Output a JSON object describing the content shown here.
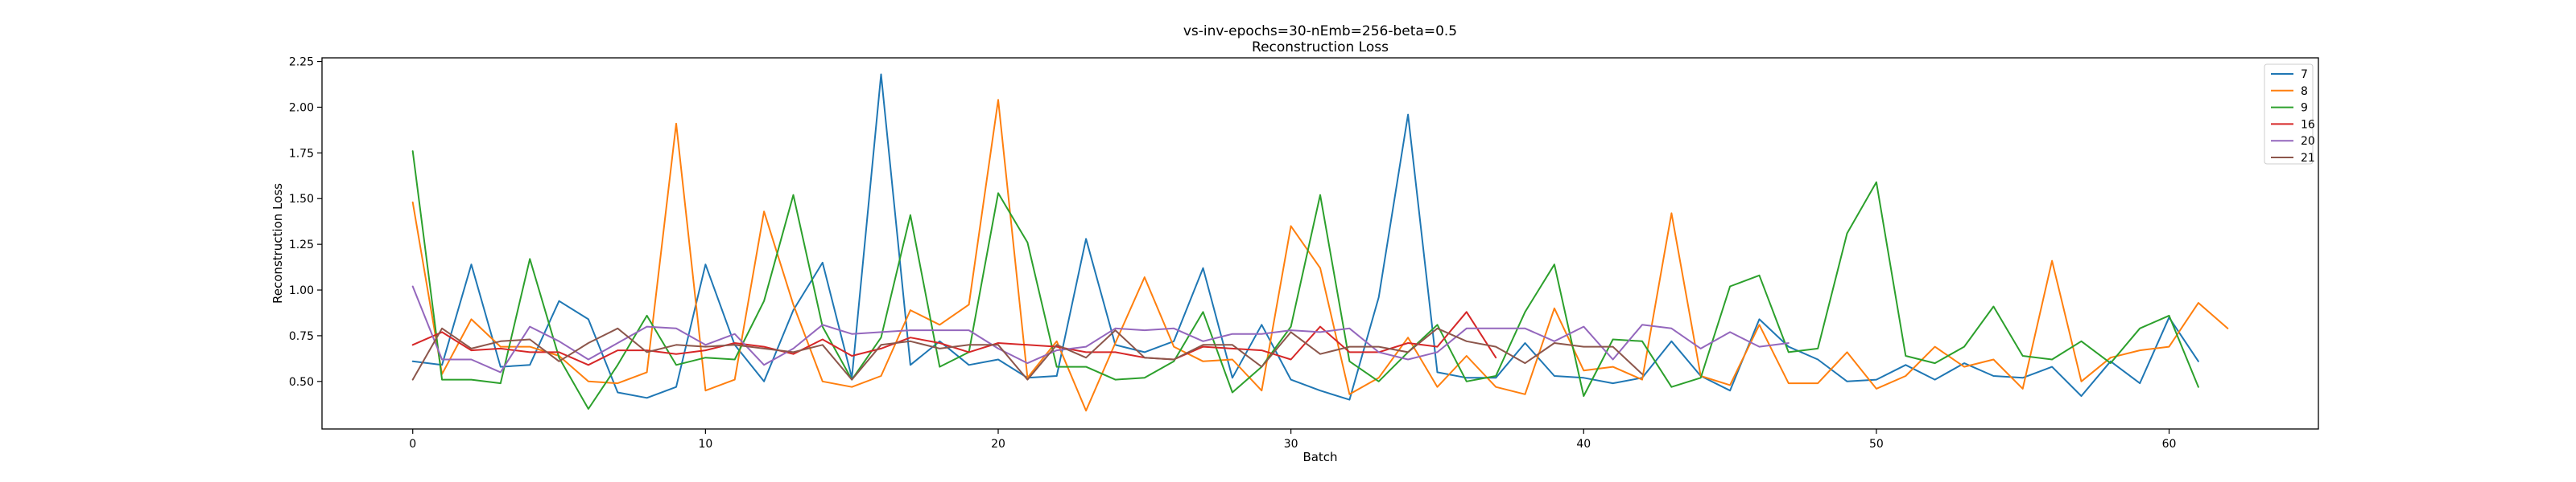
{
  "chart_data": {
    "type": "line",
    "title": "vs-inv-epochs=30-nEmb=256-beta=0.5",
    "subtitle": "Reconstruction Loss",
    "xlabel": "Batch",
    "ylabel": "Reconstruction Loss",
    "xlim": [
      -3.1,
      65.1
    ],
    "ylim": [
      0.24,
      2.27
    ],
    "xticks": [
      0,
      10,
      20,
      30,
      40,
      50,
      60
    ],
    "xtick_labels": [
      "0",
      "10",
      "20",
      "30",
      "40",
      "50",
      "60"
    ],
    "yticks": [
      0.5,
      0.75,
      1.0,
      1.25,
      1.5,
      1.75,
      2.0,
      2.25
    ],
    "ytick_labels": [
      "0.50",
      "0.75",
      "1.00",
      "1.25",
      "1.50",
      "1.75",
      "2.00",
      "2.25"
    ],
    "grid": false,
    "legend_position": "top-right",
    "series": [
      {
        "name": "7",
        "color": "#1f77b4",
        "x_start": 0,
        "x_end": 61,
        "values": [
          0.61,
          0.59,
          1.14,
          0.58,
          0.59,
          0.94,
          0.84,
          0.44,
          0.41,
          0.47,
          1.14,
          0.7,
          0.5,
          0.89,
          1.15,
          0.52,
          2.18,
          0.59,
          0.72,
          0.59,
          0.62,
          0.52,
          0.53,
          1.28,
          0.7,
          0.66,
          0.72,
          1.12,
          0.52,
          0.81,
          0.51,
          0.45,
          0.4,
          0.96,
          1.96,
          0.55,
          0.52,
          0.52,
          0.71,
          0.53,
          0.52,
          0.49,
          0.52,
          0.72,
          0.53,
          0.45,
          0.84,
          0.69,
          0.62,
          0.5,
          0.51,
          0.59,
          0.51,
          0.6,
          0.53,
          0.52,
          0.58,
          0.42,
          0.61,
          0.49,
          0.85,
          0.61
        ]
      },
      {
        "name": "8",
        "color": "#ff7f0e",
        "x_start": 0,
        "x_end": 62,
        "values": [
          1.48,
          0.54,
          0.84,
          0.69,
          0.69,
          0.64,
          0.5,
          0.49,
          0.55,
          1.91,
          0.45,
          0.51,
          1.43,
          0.92,
          0.5,
          0.47,
          0.53,
          0.89,
          0.81,
          0.92,
          2.04,
          0.52,
          0.72,
          0.34,
          0.71,
          1.07,
          0.69,
          0.61,
          0.62,
          0.45,
          1.35,
          1.12,
          0.43,
          0.52,
          0.74,
          0.47,
          0.64,
          0.47,
          0.43,
          0.9,
          0.56,
          0.58,
          0.51,
          1.42,
          0.53,
          0.48,
          0.81,
          0.49,
          0.49,
          0.66,
          0.46,
          0.53,
          0.69,
          0.58,
          0.62,
          0.46,
          1.16,
          0.5,
          0.63,
          0.67,
          0.69,
          0.93,
          0.79
        ]
      },
      {
        "name": "9",
        "color": "#2ca02c",
        "x_start": 0,
        "x_end": 61,
        "values": [
          1.76,
          0.51,
          0.51,
          0.49,
          1.17,
          0.63,
          0.35,
          0.59,
          0.86,
          0.59,
          0.63,
          0.62,
          0.94,
          1.52,
          0.8,
          0.51,
          0.74,
          1.41,
          0.58,
          0.66,
          1.53,
          1.26,
          0.58,
          0.58,
          0.51,
          0.52,
          0.61,
          0.88,
          0.44,
          0.58,
          0.8,
          1.52,
          0.61,
          0.5,
          0.66,
          0.81,
          0.5,
          0.53,
          0.88,
          1.14,
          0.42,
          0.73,
          0.72,
          0.47,
          0.52,
          1.02,
          1.08,
          0.66,
          0.68,
          1.31,
          1.59,
          0.64,
          0.6,
          0.69,
          0.91,
          0.64,
          0.62,
          0.72,
          0.6,
          0.79,
          0.86,
          0.47
        ]
      },
      {
        "name": "16",
        "color": "#d62728",
        "x_start": 0,
        "x_end": 37,
        "values": [
          0.7,
          0.77,
          0.67,
          0.68,
          0.66,
          0.66,
          0.59,
          0.67,
          0.67,
          0.65,
          0.67,
          0.71,
          0.69,
          0.65,
          0.73,
          0.64,
          0.68,
          0.74,
          0.71,
          0.66,
          0.71,
          0.7,
          0.69,
          0.66,
          0.66,
          0.63,
          0.62,
          0.69,
          0.68,
          0.67,
          0.62,
          0.8,
          0.66,
          0.66,
          0.71,
          0.69,
          0.88,
          0.63
        ]
      },
      {
        "name": "20",
        "color": "#9467bd",
        "x_start": 0,
        "x_end": 47,
        "values": [
          1.02,
          0.62,
          0.62,
          0.55,
          0.8,
          0.72,
          0.62,
          0.71,
          0.8,
          0.79,
          0.7,
          0.76,
          0.59,
          0.68,
          0.81,
          0.76,
          0.77,
          0.78,
          0.78,
          0.78,
          0.68,
          0.6,
          0.67,
          0.69,
          0.79,
          0.78,
          0.79,
          0.72,
          0.76,
          0.76,
          0.78,
          0.77,
          0.79,
          0.66,
          0.62,
          0.66,
          0.79,
          0.79,
          0.79,
          0.72,
          0.8,
          0.62,
          0.81,
          0.79,
          0.68,
          0.77,
          0.69,
          0.71
        ]
      },
      {
        "name": "21",
        "color": "#8c564b",
        "x_start": 0,
        "x_end": 42,
        "values": [
          0.51,
          0.79,
          0.68,
          0.72,
          0.73,
          0.61,
          0.71,
          0.79,
          0.66,
          0.7,
          0.69,
          0.7,
          0.68,
          0.66,
          0.7,
          0.51,
          0.7,
          0.72,
          0.68,
          0.7,
          0.7,
          0.51,
          0.7,
          0.63,
          0.78,
          0.63,
          0.62,
          0.7,
          0.7,
          0.58,
          0.77,
          0.65,
          0.69,
          0.69,
          0.66,
          0.79,
          0.72,
          0.69,
          0.6,
          0.71,
          0.69,
          0.69,
          0.54
        ]
      }
    ]
  }
}
